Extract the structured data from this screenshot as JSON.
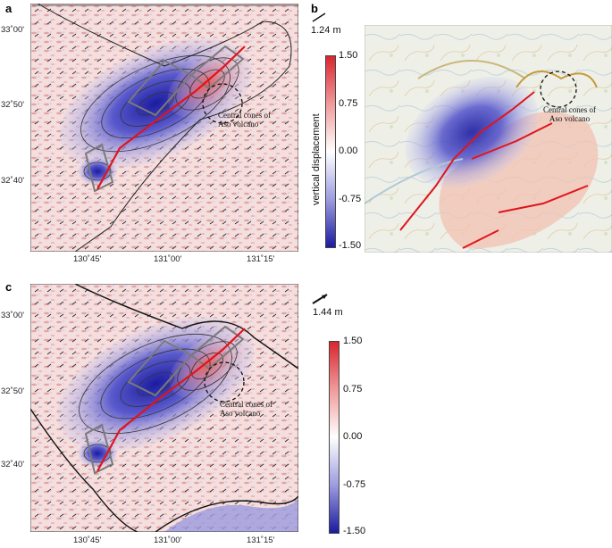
{
  "panels": {
    "a": {
      "letter": "a",
      "annotation": [
        "Central cones of",
        "Aso volcano"
      ]
    },
    "b": {
      "letter": "b",
      "annotation": [
        "Central cones of",
        "Aso volcano"
      ]
    },
    "c": {
      "letter": "c",
      "annotation": [
        "Central cones of",
        "Aso volcano"
      ]
    }
  },
  "lat_ticks": [
    "33˚00'",
    "32˚50'",
    "32˚40'"
  ],
  "lon_ticks": [
    "130˚45'",
    "131˚00'",
    "131˚15'"
  ],
  "scale_top": "1.24 m",
  "scale_bottom": "1.44 m",
  "colorbar_top": {
    "label": "vertical displacement",
    "ticks": [
      "1.50",
      "0.75",
      "0.00",
      "-0.75",
      "-1.50"
    ]
  },
  "colorbar_bottom": {
    "ticks": [
      "1.50",
      "0.75",
      "0.00",
      "-0.75",
      "-1.50"
    ]
  },
  "colors": {
    "uplift": "#d9262e",
    "subsidence": "#1b1ba0",
    "fault": "#e0141c",
    "box": "#7a7a7a"
  }
}
